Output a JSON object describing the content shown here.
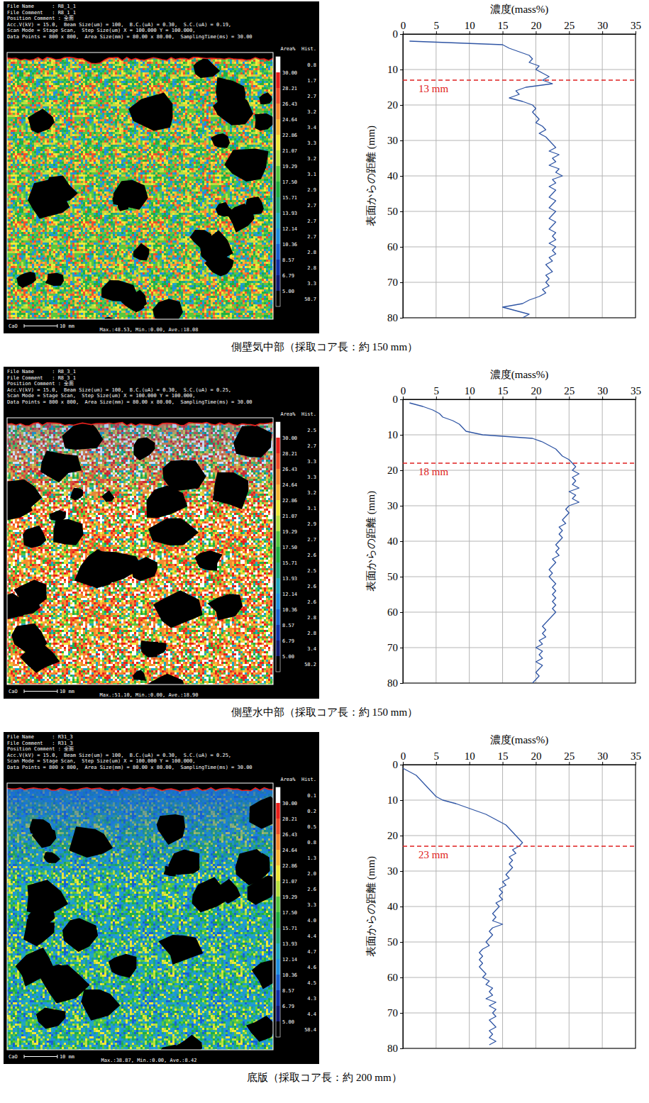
{
  "chart_data": [
    {
      "type": "line",
      "x_label": "濃度(mass%)",
      "y_label": "表面からの距離 (mm)",
      "xlim": [
        0,
        35
      ],
      "xticks": [
        0,
        5,
        10,
        15,
        20,
        25,
        30,
        35
      ],
      "ylim": [
        0,
        80
      ],
      "yticks": [
        0,
        10,
        20,
        30,
        40,
        50,
        60,
        70,
        80
      ],
      "grid": true,
      "series": [
        {
          "color": "#2f55a4",
          "y": [
            0,
            1,
            2,
            3,
            4,
            5,
            6,
            7,
            8,
            9,
            10,
            11,
            12,
            13,
            14,
            15,
            16,
            17,
            18,
            19,
            20,
            21,
            22,
            23,
            24,
            25,
            26,
            27,
            28,
            29,
            30,
            31,
            32,
            33,
            34,
            35,
            36,
            37,
            38,
            39,
            40,
            41,
            42,
            43,
            44,
            45,
            46,
            47,
            48,
            49,
            50,
            51,
            52,
            53,
            54,
            55,
            56,
            57,
            58,
            59,
            60,
            61,
            62,
            63,
            64,
            65,
            66,
            67,
            68,
            69,
            70,
            71,
            72,
            73,
            74,
            75,
            76,
            77,
            78,
            79,
            80
          ],
          "values": [
            null,
            null,
            1,
            15,
            16,
            17.5,
            19,
            19.5,
            19,
            20.5,
            20,
            21,
            22,
            21,
            22.5,
            18.5,
            17,
            17.5,
            16,
            18,
            19.5,
            20,
            19.5,
            20,
            20.5,
            20,
            21,
            21.5,
            20.5,
            21.5,
            22,
            22.5,
            23,
            22,
            23.5,
            22.5,
            23,
            22,
            23.5,
            23,
            24,
            22.5,
            23,
            22,
            23,
            22.5,
            22,
            23,
            22.5,
            22,
            23,
            22.5,
            22,
            23,
            22.5,
            22,
            23,
            22.5,
            23,
            22,
            23,
            22.5,
            23,
            22,
            22.5,
            21.5,
            22,
            22.5,
            21.5,
            22,
            21.5,
            22,
            21,
            21.5,
            20.5,
            19,
            18,
            15,
            17,
            19,
            18
          ]
        }
      ],
      "annotations": [
        {
          "text": "13 mm",
          "y": 13,
          "color": "#e02020",
          "line_style": "dashed"
        }
      ]
    },
    {
      "type": "line",
      "x_label": "濃度(mass%)",
      "y_label": "表面からの距離 (mm)",
      "xlim": [
        0,
        35
      ],
      "xticks": [
        0,
        5,
        10,
        15,
        20,
        25,
        30,
        35
      ],
      "ylim": [
        0,
        80
      ],
      "yticks": [
        0,
        10,
        20,
        30,
        40,
        50,
        60,
        70,
        80
      ],
      "grid": true,
      "series": [
        {
          "color": "#2f55a4",
          "y": [
            0,
            1,
            2,
            3,
            4,
            5,
            6,
            7,
            8,
            9,
            10,
            11,
            12,
            13,
            14,
            15,
            16,
            17,
            18,
            19,
            20,
            21,
            22,
            23,
            24,
            25,
            26,
            27,
            28,
            29,
            30,
            31,
            32,
            33,
            34,
            35,
            36,
            37,
            38,
            39,
            40,
            41,
            42,
            43,
            44,
            45,
            46,
            47,
            48,
            49,
            50,
            51,
            52,
            53,
            54,
            55,
            56,
            57,
            58,
            59,
            60,
            61,
            62,
            63,
            64,
            65,
            66,
            67,
            68,
            69,
            70,
            71,
            72,
            73,
            74,
            75,
            76,
            77,
            78,
            79,
            80
          ],
          "values": [
            null,
            1,
            3,
            4.5,
            5.5,
            6,
            7.5,
            8.5,
            9,
            9.5,
            12,
            19.5,
            21,
            22,
            23,
            23.5,
            24,
            25,
            25.5,
            26,
            25.5,
            26.5,
            25.5,
            26,
            25.5,
            26.5,
            25,
            26,
            25.5,
            26.5,
            25,
            24.5,
            25,
            24.5,
            24,
            24.5,
            23.5,
            24,
            23.5,
            24,
            23.5,
            23,
            23.5,
            23,
            23.5,
            22.5,
            23,
            22.5,
            22,
            22.5,
            22,
            22.5,
            23,
            22.5,
            23,
            22.5,
            23,
            22.5,
            23,
            22.5,
            23,
            22.5,
            22,
            21.5,
            21,
            21.5,
            21,
            21.5,
            20.5,
            21,
            20,
            21,
            20.5,
            21,
            20,
            21,
            20.5,
            20,
            20.5,
            20,
            19.5
          ]
        }
      ],
      "annotations": [
        {
          "text": "18 mm",
          "y": 18,
          "color": "#e02020",
          "line_style": "dashed"
        }
      ]
    },
    {
      "type": "line",
      "x_label": "濃度(mass%)",
      "y_label": "表面からの距離 (mm)",
      "xlim": [
        0,
        35
      ],
      "xticks": [
        0,
        5,
        10,
        15,
        20,
        25,
        30,
        35
      ],
      "ylim": [
        0,
        80
      ],
      "yticks": [
        0,
        10,
        20,
        30,
        40,
        50,
        60,
        70,
        80
      ],
      "grid": true,
      "series": [
        {
          "color": "#2f55a4",
          "y": [
            0,
            1,
            2,
            3,
            4,
            5,
            6,
            7,
            8,
            9,
            10,
            11,
            12,
            13,
            14,
            15,
            16,
            17,
            18,
            19,
            20,
            21,
            22,
            23,
            24,
            25,
            26,
            27,
            28,
            29,
            30,
            31,
            32,
            33,
            34,
            35,
            36,
            37,
            38,
            39,
            40,
            41,
            42,
            43,
            44,
            45,
            46,
            47,
            48,
            49,
            50,
            51,
            52,
            53,
            54,
            55,
            56,
            57,
            58,
            59,
            60,
            61,
            62,
            63,
            64,
            65,
            66,
            67,
            68,
            69,
            70,
            71,
            72,
            73,
            74,
            75,
            76,
            77,
            78,
            79,
            80
          ],
          "values": [
            null,
            0,
            1,
            2,
            2.5,
            3,
            3.5,
            4,
            4.5,
            5,
            6,
            8,
            9.5,
            11,
            12.5,
            13.5,
            14.5,
            15.5,
            16,
            16.5,
            17,
            17.5,
            18,
            17.5,
            16.5,
            17,
            16,
            16.5,
            16,
            16.5,
            16,
            15.5,
            16,
            15,
            15.5,
            14.5,
            15,
            14.5,
            15,
            14,
            14.5,
            14,
            13.5,
            14,
            13.5,
            15,
            13.5,
            13,
            13.5,
            13,
            12.5,
            13,
            12,
            11.5,
            12,
            11.5,
            12,
            11.5,
            12,
            12.5,
            12,
            13,
            12.5,
            13.5,
            13,
            13.5,
            12.5,
            14,
            13,
            14,
            13.5,
            14,
            13,
            13.5,
            14,
            13,
            13.5,
            13,
            14,
            13,
            null
          ]
        }
      ],
      "annotations": [
        {
          "text": "23 mm",
          "y": 23,
          "color": "#e02020",
          "line_style": "dashed"
        }
      ]
    }
  ],
  "maps": [
    {
      "header": [
        "File Name      : R8_1_1",
        "File Comment   : R8_1_1",
        "Position Comment : 全面",
        "Acc.V(kV) = 15.0,  Beam Size(um) = 100,  B.C.(uA) = 0.30,  S.C.(uA) = 0.19,",
        "Scan Mode = Stage Scan,  Step Size(um) X = 100.000 Y = 100.000,",
        "Data Points = 800 x 800,  Area Size(mm) = 80.00 x 80.00,  SamplingTime(ms) = 30.00"
      ],
      "hist_title": "Area%  Hist.",
      "levels": [
        "30.00",
        "28.21",
        "26.43",
        "24.64",
        "22.86",
        "21.07",
        "19.29",
        "17.50",
        "15.71",
        "13.93",
        "12.14",
        "10.36",
        "8.57",
        "6.79",
        "5.00"
      ],
      "area": [
        "0.8",
        "1.7",
        "2.7",
        "3.2",
        "3.4",
        "3.3",
        "3.2",
        "3.1",
        "2.9",
        "2.7",
        "2.7",
        "2.7",
        "2.8",
        "2.8",
        "3.3",
        "58.7"
      ],
      "element": "CaO",
      "scale_bar": "10 mm",
      "stats": "Max.:48.53, Min.:0.00, Ave.:18.08"
    },
    {
      "header": [
        "File Name      : R8_3_1",
        "File Comment   : R8_3_1",
        "Position Comment : 全面",
        "Acc.V(kV) = 15.0,  Beam Size(um) = 100,  B.C.(uA) = 0.30,  S.C.(uA) = 0.25,",
        "Scan Mode = Stage Scan,  Step Size(um) X = 100.000 Y = 100.000,",
        "Data Points = 800 x 800,  Area Size(mm) = 80.00 x 80.00,  SamplingTime(ms) = 30.00"
      ],
      "hist_title": "Area%  Hist.",
      "levels": [
        "30.00",
        "28.21",
        "26.43",
        "24.64",
        "22.86",
        "21.07",
        "19.29",
        "17.50",
        "15.71",
        "13.93",
        "12.14",
        "10.36",
        "8.57",
        "6.79",
        "5.00"
      ],
      "area": [
        "2.5",
        "2.7",
        "3.3",
        "3.3",
        "3.2",
        "3.1",
        "2.9",
        "2.7",
        "2.6",
        "2.5",
        "2.6",
        "2.6",
        "2.8",
        "2.8",
        "3.4",
        "58.2"
      ],
      "element": "CaO",
      "scale_bar": "10 mm",
      "stats": "Max.:51.10, Min.:0.00, Ave.:18.90"
    },
    {
      "header": [
        "File Name      : R31_3",
        "File Comment   : R31_3",
        "Position Comment : 全面",
        "Acc.V(kV) = 15.0,  Beam Size(um) = 100,  B.C.(uA) = 0.30,  S.C.(uA) = 0.25,",
        "Scan Mode = Stage Scan,  Step Size(um) X = 100.000 Y = 100.000,",
        "Data Points = 800 x 800,  Area Size(mm) = 80.00 x 80.00,  SamplingTime(ms) = 30.00"
      ],
      "hist_title": "Area%  Hist.",
      "levels": [
        "30.00",
        "28.21",
        "26.43",
        "24.64",
        "22.86",
        "21.07",
        "19.29",
        "17.50",
        "15.71",
        "13.93",
        "12.14",
        "10.36",
        "8.57",
        "6.79",
        "5.00"
      ],
      "area": [
        "0.1",
        "0.2",
        "0.5",
        "0.8",
        "1.3",
        "2.0",
        "2.6",
        "3.3",
        "4.0",
        "4.4",
        "4.7",
        "4.6",
        "4.5",
        "4.3",
        "4.4",
        "58.4"
      ],
      "element": "CaO",
      "scale_bar": "10 mm",
      "stats": "Max.:38.87, Min.:0.00, Ave.:8.42"
    }
  ],
  "captions": [
    "側壁気中部（採取コア長：約 150 mm）",
    "側壁水中部（採取コア長：約 150 mm）",
    "底版（採取コア長：約 200 mm）"
  ]
}
